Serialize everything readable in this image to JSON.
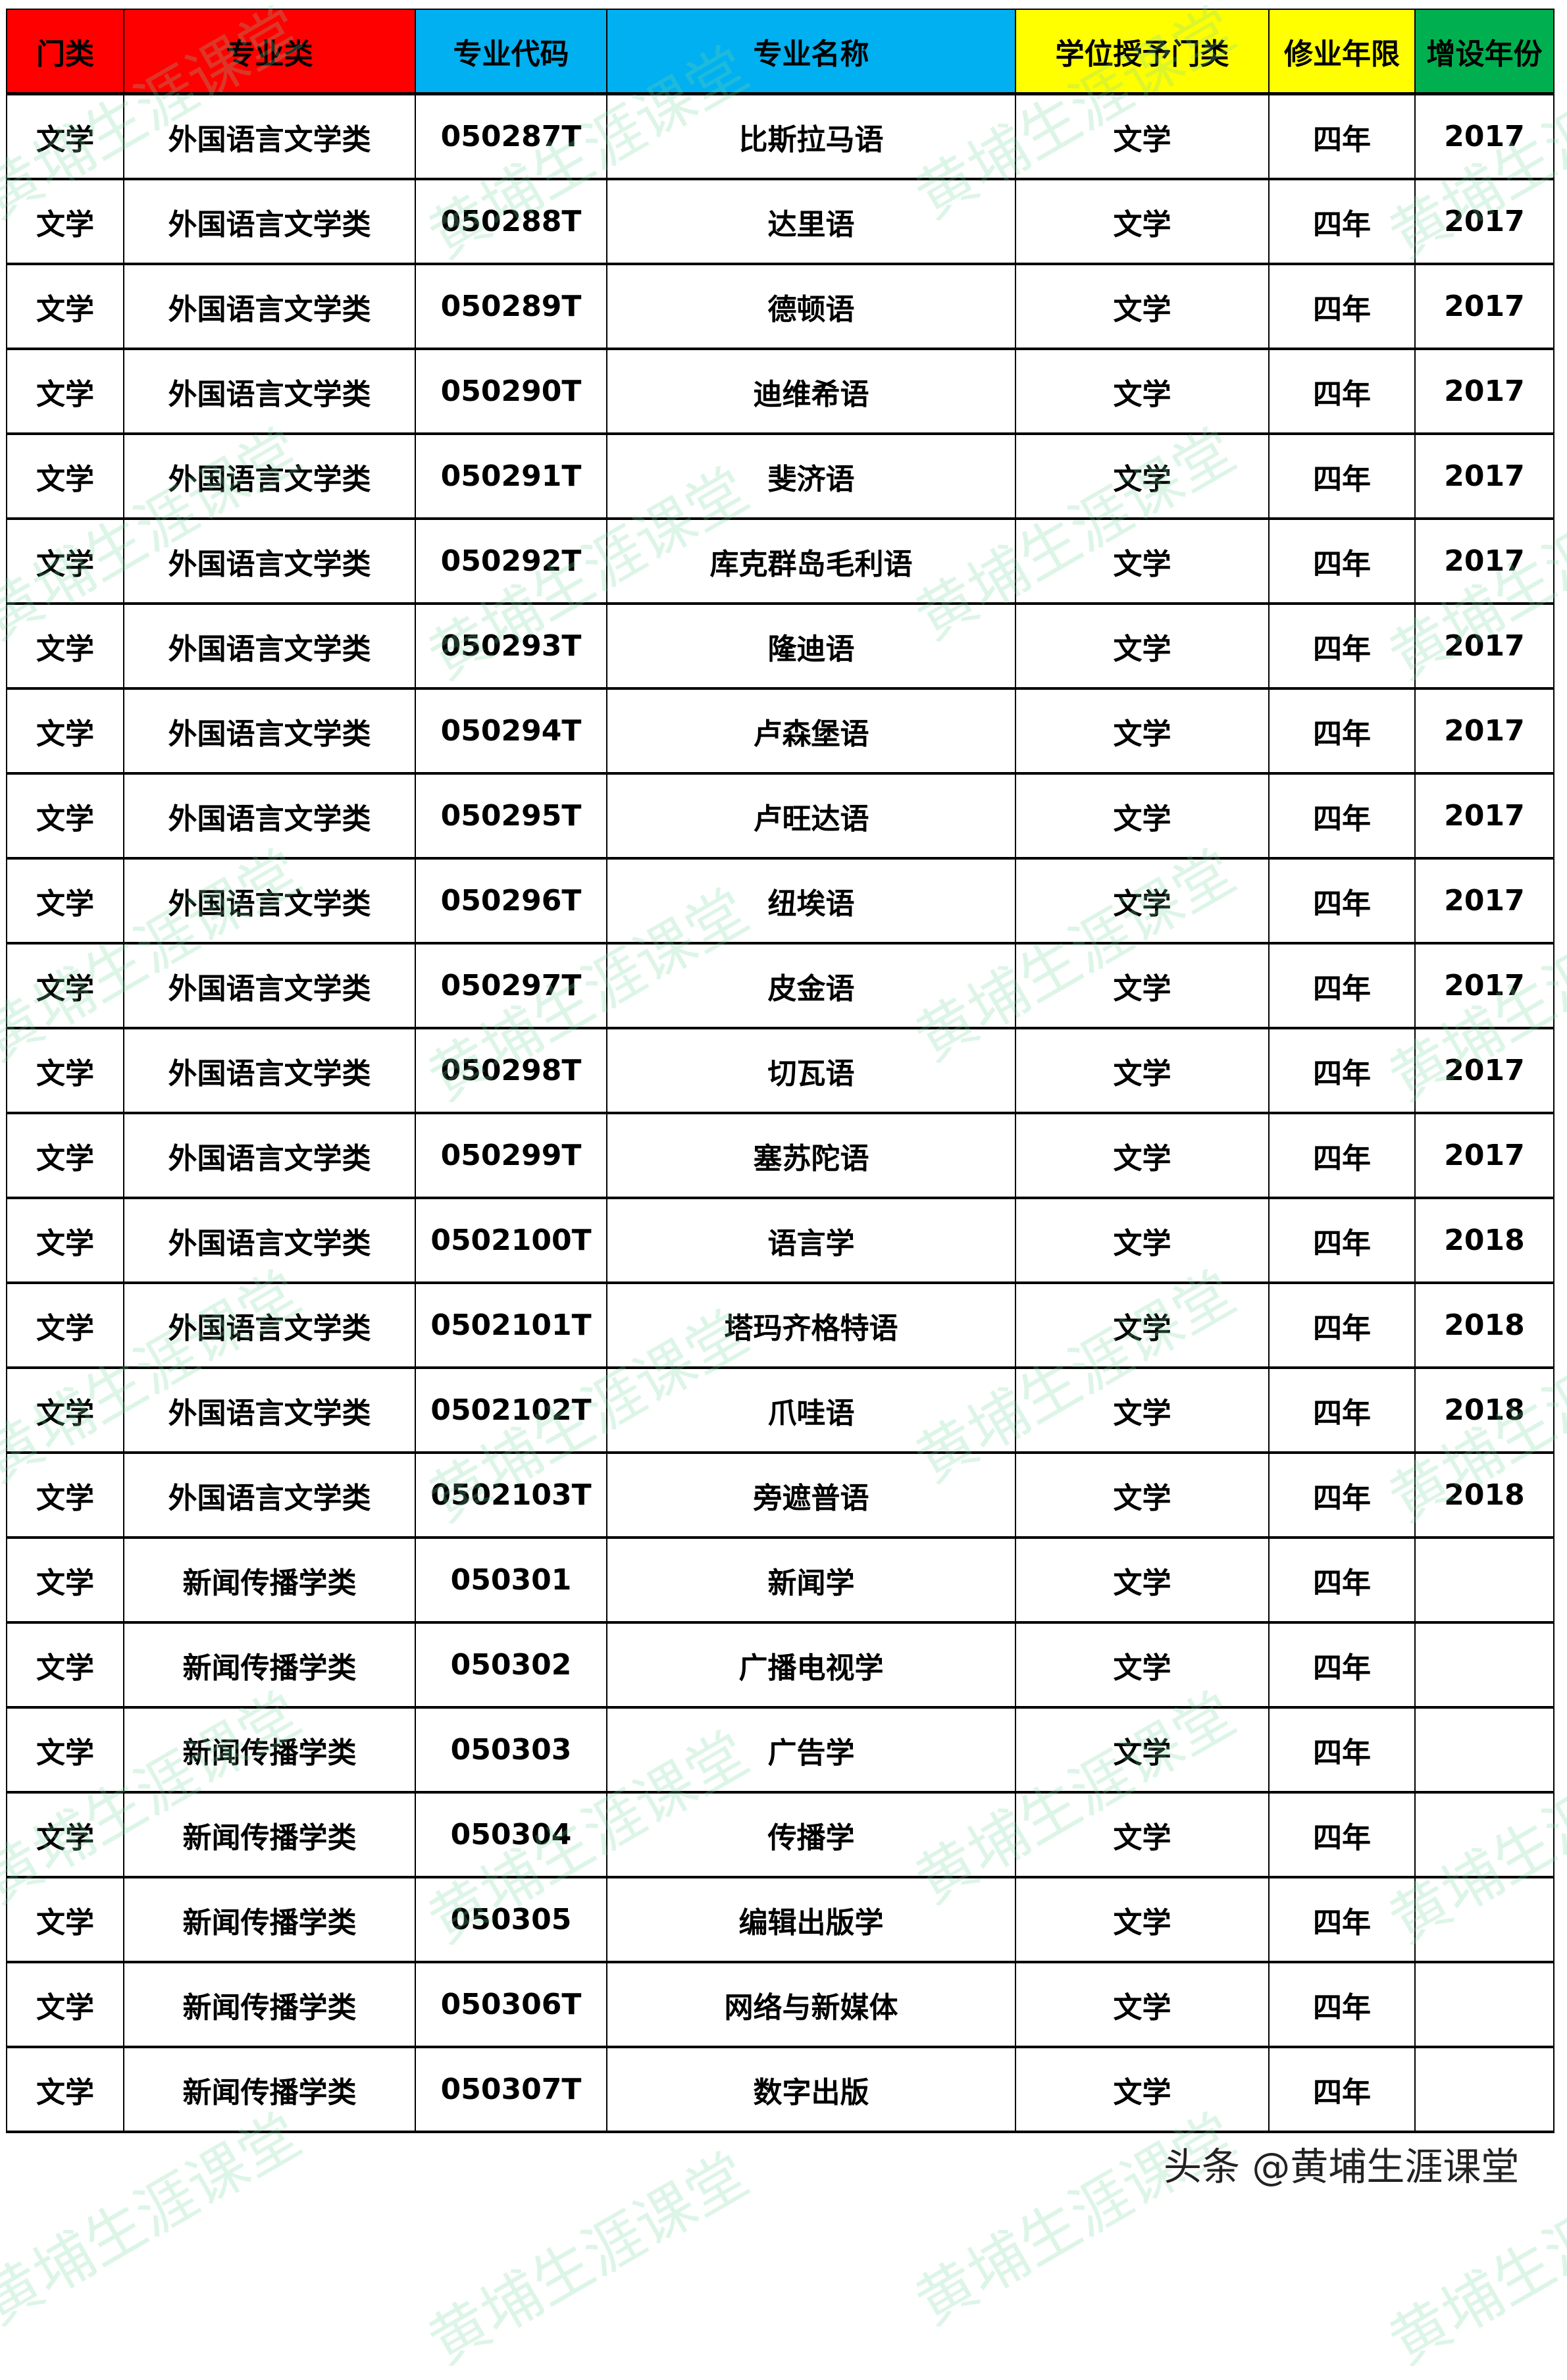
{
  "header_colors": {
    "red": "#ff0000",
    "blue": "#00b0f0",
    "yellow": "#ffff00",
    "green": "#00b050"
  },
  "columns": [
    {
      "label": "门类",
      "color": "#ff0000"
    },
    {
      "label": "专业类",
      "color": "#ff0000"
    },
    {
      "label": "专业代码",
      "color": "#00b0f0"
    },
    {
      "label": "专业名称",
      "color": "#00b0f0"
    },
    {
      "label": "学位授予门类",
      "color": "#ffff00"
    },
    {
      "label": "修业年限",
      "color": "#ffff00"
    },
    {
      "label": "增设年份",
      "color": "#00b050"
    }
  ],
  "rows": [
    [
      "文学",
      "外国语言文学类",
      "050287T",
      "比斯拉马语",
      "文学",
      "四年",
      "2017"
    ],
    [
      "文学",
      "外国语言文学类",
      "050288T",
      "达里语",
      "文学",
      "四年",
      "2017"
    ],
    [
      "文学",
      "外国语言文学类",
      "050289T",
      "德顿语",
      "文学",
      "四年",
      "2017"
    ],
    [
      "文学",
      "外国语言文学类",
      "050290T",
      "迪维希语",
      "文学",
      "四年",
      "2017"
    ],
    [
      "文学",
      "外国语言文学类",
      "050291T",
      "斐济语",
      "文学",
      "四年",
      "2017"
    ],
    [
      "文学",
      "外国语言文学类",
      "050292T",
      "库克群岛毛利语",
      "文学",
      "四年",
      "2017"
    ],
    [
      "文学",
      "外国语言文学类",
      "050293T",
      "隆迪语",
      "文学",
      "四年",
      "2017"
    ],
    [
      "文学",
      "外国语言文学类",
      "050294T",
      "卢森堡语",
      "文学",
      "四年",
      "2017"
    ],
    [
      "文学",
      "外国语言文学类",
      "050295T",
      "卢旺达语",
      "文学",
      "四年",
      "2017"
    ],
    [
      "文学",
      "外国语言文学类",
      "050296T",
      "纽埃语",
      "文学",
      "四年",
      "2017"
    ],
    [
      "文学",
      "外国语言文学类",
      "050297T",
      "皮金语",
      "文学",
      "四年",
      "2017"
    ],
    [
      "文学",
      "外国语言文学类",
      "050298T",
      "切瓦语",
      "文学",
      "四年",
      "2017"
    ],
    [
      "文学",
      "外国语言文学类",
      "050299T",
      "塞苏陀语",
      "文学",
      "四年",
      "2017"
    ],
    [
      "文学",
      "外国语言文学类",
      "0502100T",
      "语言学",
      "文学",
      "四年",
      "2018"
    ],
    [
      "文学",
      "外国语言文学类",
      "0502101T",
      "塔玛齐格特语",
      "文学",
      "四年",
      "2018"
    ],
    [
      "文学",
      "外国语言文学类",
      "0502102T",
      "爪哇语",
      "文学",
      "四年",
      "2018"
    ],
    [
      "文学",
      "外国语言文学类",
      "0502103T",
      "旁遮普语",
      "文学",
      "四年",
      "2018"
    ],
    [
      "文学",
      "新闻传播学类",
      "050301",
      "新闻学",
      "文学",
      "四年",
      ""
    ],
    [
      "文学",
      "新闻传播学类",
      "050302",
      "广播电视学",
      "文学",
      "四年",
      ""
    ],
    [
      "文学",
      "新闻传播学类",
      "050303",
      "广告学",
      "文学",
      "四年",
      ""
    ],
    [
      "文学",
      "新闻传播学类",
      "050304",
      "传播学",
      "文学",
      "四年",
      ""
    ],
    [
      "文学",
      "新闻传播学类",
      "050305",
      "编辑出版学",
      "文学",
      "四年",
      ""
    ],
    [
      "文学",
      "新闻传播学类",
      "050306T",
      "网络与新媒体",
      "文学",
      "四年",
      ""
    ],
    [
      "文学",
      "新闻传播学类",
      "050307T",
      "数字出版",
      "文学",
      "四年",
      ""
    ]
  ],
  "watermark": "黄埔生涯课堂",
  "footer": "头条 @黄埔生涯课堂"
}
